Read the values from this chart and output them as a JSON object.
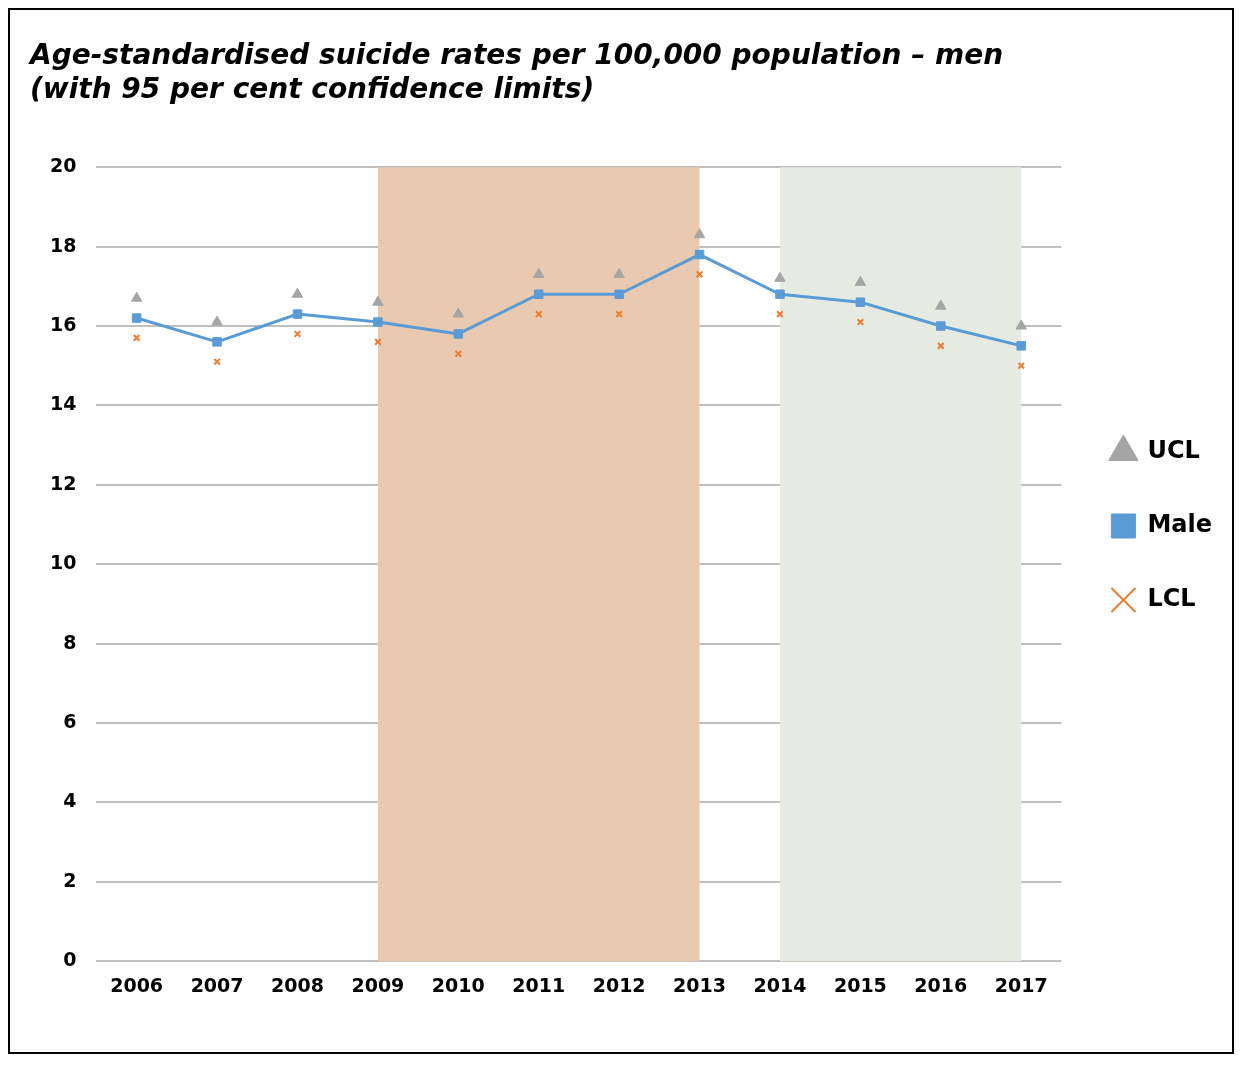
{
  "chart_data": {
    "type": "line",
    "title": [
      "Age-standardised suicide rates per 100,000 population – men",
      "(with 95 per cent confidence limits)"
    ],
    "categories": [
      "2006",
      "2007",
      "2008",
      "2009",
      "2010",
      "2011",
      "2012",
      "2013",
      "2014",
      "2015",
      "2016",
      "2017"
    ],
    "series": [
      {
        "name": "UCL",
        "type": "scatter",
        "marker": "triangle",
        "color": "#a5a5a5",
        "values": [
          16.7,
          16.1,
          16.8,
          16.6,
          16.3,
          17.3,
          17.3,
          18.3,
          17.2,
          17.1,
          16.5,
          16.0
        ]
      },
      {
        "name": "Male",
        "type": "line",
        "marker": "square",
        "color": "#5b9bd5",
        "values": [
          16.2,
          15.6,
          16.3,
          16.1,
          15.8,
          16.8,
          16.8,
          17.8,
          16.8,
          16.6,
          16.0,
          15.5
        ]
      },
      {
        "name": "LCL",
        "type": "scatter",
        "marker": "cross",
        "color": "#ed7d31",
        "values": [
          15.7,
          15.1,
          15.8,
          15.6,
          15.3,
          16.3,
          16.3,
          17.3,
          16.3,
          16.1,
          15.5,
          15.0
        ]
      }
    ],
    "ylim": [
      0,
      20
    ],
    "yticks": [
      0,
      2,
      4,
      6,
      8,
      10,
      12,
      14,
      16,
      18,
      20
    ],
    "grid": "y",
    "legend": "right",
    "bands": [
      {
        "axis": "x",
        "from": "2009",
        "to": "2013",
        "color": "#e9c9b0"
      },
      {
        "axis": "x",
        "from": "2014",
        "to": "2017",
        "color": "#e5ebe0"
      }
    ]
  }
}
